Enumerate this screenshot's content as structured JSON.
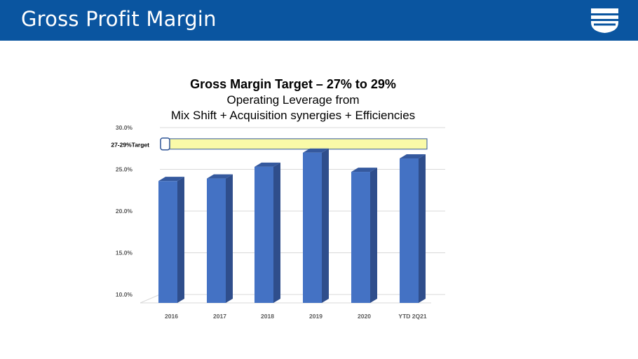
{
  "header": {
    "title": "Gross Profit Margin",
    "bg_color": "#0a55a0",
    "logo_icon": "company-shield-logo"
  },
  "chart_data": {
    "type": "bar",
    "title": "Gross Margin Target – 27% to 29%",
    "subtitle_lines": [
      "Operating Leverage from",
      "Mix Shift + Acquisition synergies + Efficiencies"
    ],
    "categories": [
      "2016",
      "2017",
      "2018",
      "2019",
      "2020",
      "YTD 2Q21"
    ],
    "values": [
      23.6,
      23.9,
      25.3,
      27.0,
      24.7,
      26.3
    ],
    "ylim": [
      10,
      30
    ],
    "yticks": [
      "10.0%",
      "15.0%",
      "20.0%",
      "25.0%",
      "30.0%"
    ],
    "ytick_values": [
      10,
      15,
      20,
      25,
      30
    ],
    "grid": true,
    "bar_color": "#4472c4",
    "target_band": {
      "label": "27-29%Target",
      "range": [
        27,
        29
      ],
      "fill": "#fafaa8",
      "stroke": "#2f5597"
    }
  }
}
